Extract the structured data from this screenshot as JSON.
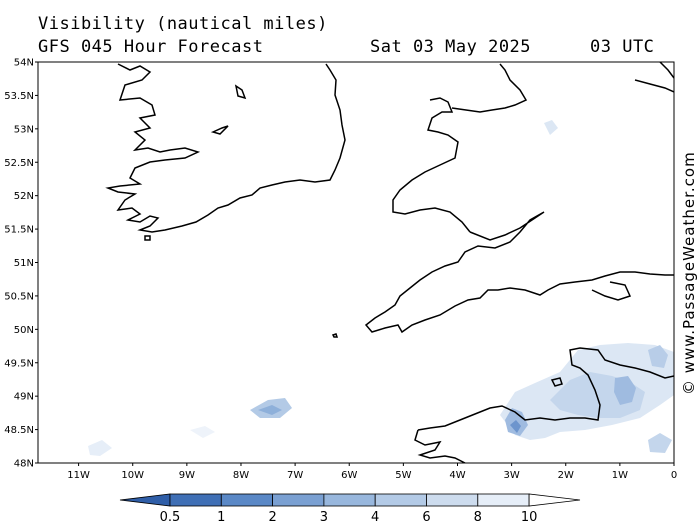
{
  "header": {
    "title": "Visibility (nautical miles)",
    "model": "GFS 045 Hour Forecast",
    "date": "Sat 03 May 2025",
    "time": "03 UTC"
  },
  "map": {
    "lat_labels": [
      "54N",
      "53.5N",
      "53N",
      "52.5N",
      "52N",
      "51.5N",
      "51N",
      "50.5N",
      "50N",
      "49.5N",
      "49N",
      "48.5N",
      "48N"
    ],
    "lon_labels": [
      "11W",
      "10W",
      "9W",
      "8W",
      "7W",
      "6W",
      "5W",
      "4W",
      "3W",
      "2W",
      "1W",
      "0"
    ],
    "lat_range": [
      48,
      54
    ],
    "lon_range": [
      -11.75,
      0
    ]
  },
  "legend": {
    "labels": [
      "0.5",
      "1",
      "2",
      "3",
      "4",
      "6",
      "8",
      "10"
    ],
    "colors": [
      "#3f6fb5",
      "#5a88c6",
      "#7aa0d2",
      "#98b7dd",
      "#b3cae6",
      "#cddcee",
      "#e6eef8",
      "#ffffff"
    ]
  },
  "credit": "© www.PassageWeather.com"
}
